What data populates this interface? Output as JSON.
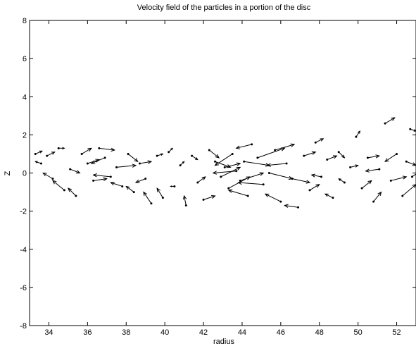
{
  "chart_data": {
    "type": "quiver",
    "title": "Velocity field of the particles in a portion of the disc",
    "xlabel": "radius",
    "ylabel": "Z",
    "xlim": [
      33,
      53
    ],
    "ylim": [
      -8,
      8
    ],
    "xticks": [
      34,
      36,
      38,
      40,
      42,
      44,
      46,
      48,
      50,
      52
    ],
    "yticks": [
      -8,
      -6,
      -4,
      -2,
      0,
      2,
      4,
      6,
      8
    ],
    "grid": false,
    "marker_color": "#000000",
    "series": [
      {
        "vectors": [
          {
            "x": 33.3,
            "y": 1.0,
            "u": 0.35,
            "v": 0.15
          },
          {
            "x": 33.6,
            "y": 0.5,
            "u": -0.3,
            "v": 0.1
          },
          {
            "x": 33.9,
            "y": 0.9,
            "u": 0.4,
            "v": 0.2
          },
          {
            "x": 34.2,
            "y": -0.3,
            "u": -0.5,
            "v": 0.3
          },
          {
            "x": 34.5,
            "y": 1.3,
            "u": 0.3,
            "v": 0.0
          },
          {
            "x": 34.8,
            "y": -0.9,
            "u": -0.6,
            "v": 0.5
          },
          {
            "x": 35.1,
            "y": 0.2,
            "u": 0.5,
            "v": -0.2
          },
          {
            "x": 35.4,
            "y": -1.2,
            "u": -0.4,
            "v": 0.4
          },
          {
            "x": 35.7,
            "y": 1.0,
            "u": 0.5,
            "v": 0.3
          },
          {
            "x": 36.0,
            "y": 0.5,
            "u": 0.6,
            "v": 0.2
          },
          {
            "x": 36.3,
            "y": -0.4,
            "u": 0.7,
            "v": 0.1
          },
          {
            "x": 36.6,
            "y": 1.3,
            "u": 0.8,
            "v": -0.1
          },
          {
            "x": 36.9,
            "y": 0.8,
            "u": -0.7,
            "v": -0.3
          },
          {
            "x": 37.2,
            "y": -0.2,
            "u": -0.9,
            "v": 0.1
          },
          {
            "x": 37.5,
            "y": 0.3,
            "u": 1.0,
            "v": 0.1
          },
          {
            "x": 37.8,
            "y": -0.7,
            "u": -0.6,
            "v": 0.2
          },
          {
            "x": 38.1,
            "y": 1.0,
            "u": 0.5,
            "v": -0.4
          },
          {
            "x": 38.4,
            "y": -1.0,
            "u": -0.4,
            "v": 0.3
          },
          {
            "x": 38.7,
            "y": 0.5,
            "u": 0.6,
            "v": 0.1
          },
          {
            "x": 39.0,
            "y": -0.3,
            "u": -0.5,
            "v": -0.2
          },
          {
            "x": 39.3,
            "y": -1.6,
            "u": -0.4,
            "v": 0.6
          },
          {
            "x": 39.6,
            "y": 0.9,
            "u": 0.3,
            "v": 0.1
          },
          {
            "x": 39.9,
            "y": -1.3,
            "u": -0.3,
            "v": 0.5
          },
          {
            "x": 40.2,
            "y": 1.1,
            "u": 0.2,
            "v": 0.2
          },
          {
            "x": 40.5,
            "y": -0.7,
            "u": -0.2,
            "v": 0.0
          },
          {
            "x": 40.8,
            "y": 0.4,
            "u": 0.2,
            "v": 0.2
          },
          {
            "x": 41.1,
            "y": -1.7,
            "u": -0.1,
            "v": 0.5
          },
          {
            "x": 41.4,
            "y": 0.9,
            "u": 0.3,
            "v": -0.2
          },
          {
            "x": 41.7,
            "y": -0.5,
            "u": 0.4,
            "v": 0.3
          },
          {
            "x": 42.0,
            "y": -1.4,
            "u": 0.6,
            "v": 0.2
          },
          {
            "x": 42.3,
            "y": 1.2,
            "u": 0.5,
            "v": -0.4
          },
          {
            "x": 42.6,
            "y": 0.6,
            "u": 0.8,
            "v": -0.3
          },
          {
            "x": 42.9,
            "y": -0.2,
            "u": 1.0,
            "v": 0.5
          },
          {
            "x": 43.1,
            "y": 0.3,
            "u": 0.8,
            "v": 0.2
          },
          {
            "x": 43.3,
            "y": -0.8,
            "u": 1.1,
            "v": 0.6
          },
          {
            "x": 43.5,
            "y": 1.0,
            "u": -0.9,
            "v": -0.6
          },
          {
            "x": 43.7,
            "y": 0.1,
            "u": -1.2,
            "v": -0.1
          },
          {
            "x": 43.9,
            "y": -0.4,
            "u": 1.2,
            "v": 0.4
          },
          {
            "x": 44.1,
            "y": 0.6,
            "u": 1.3,
            "v": -0.2
          },
          {
            "x": 44.3,
            "y": -1.2,
            "u": -1.0,
            "v": 0.3
          },
          {
            "x": 44.5,
            "y": 1.5,
            "u": -0.8,
            "v": -0.2
          },
          {
            "x": 44.8,
            "y": 0.8,
            "u": 1.4,
            "v": 0.5
          },
          {
            "x": 45.1,
            "y": -0.6,
            "u": -1.3,
            "v": 0.1
          },
          {
            "x": 45.4,
            "y": 0.0,
            "u": 1.2,
            "v": -0.3
          },
          {
            "x": 45.7,
            "y": 1.2,
            "u": 1.0,
            "v": 0.3
          },
          {
            "x": 46.0,
            "y": -1.5,
            "u": -0.8,
            "v": 0.4
          },
          {
            "x": 46.3,
            "y": 0.5,
            "u": -1.0,
            "v": -0.1
          },
          {
            "x": 46.6,
            "y": -0.3,
            "u": 0.9,
            "v": -0.2
          },
          {
            "x": 46.9,
            "y": -1.8,
            "u": -0.7,
            "v": 0.1
          },
          {
            "x": 47.2,
            "y": 0.9,
            "u": 0.6,
            "v": 0.2
          },
          {
            "x": 47.5,
            "y": -0.9,
            "u": 0.5,
            "v": 0.3
          },
          {
            "x": 47.8,
            "y": 1.6,
            "u": 0.4,
            "v": 0.2
          },
          {
            "x": 48.1,
            "y": -0.2,
            "u": -0.5,
            "v": 0.1
          },
          {
            "x": 48.4,
            "y": 0.7,
            "u": 0.5,
            "v": 0.2
          },
          {
            "x": 48.7,
            "y": -1.3,
            "u": -0.4,
            "v": 0.2
          },
          {
            "x": 49.0,
            "y": 1.1,
            "u": 0.3,
            "v": -0.3
          },
          {
            "x": 49.3,
            "y": -0.5,
            "u": -0.3,
            "v": 0.2
          },
          {
            "x": 49.6,
            "y": 0.3,
            "u": 0.4,
            "v": 0.1
          },
          {
            "x": 49.9,
            "y": 1.9,
            "u": 0.2,
            "v": 0.3
          },
          {
            "x": 50.2,
            "y": -0.8,
            "u": 0.5,
            "v": 0.4
          },
          {
            "x": 50.5,
            "y": 0.8,
            "u": 0.6,
            "v": 0.1
          },
          {
            "x": 50.8,
            "y": -1.5,
            "u": 0.4,
            "v": 0.5
          },
          {
            "x": 51.1,
            "y": 0.2,
            "u": -0.7,
            "v": -0.1
          },
          {
            "x": 51.4,
            "y": 2.6,
            "u": 0.5,
            "v": 0.3
          },
          {
            "x": 51.7,
            "y": -0.4,
            "u": 0.8,
            "v": 0.2
          },
          {
            "x": 52.0,
            "y": 1.0,
            "u": -0.6,
            "v": -0.4
          },
          {
            "x": 52.3,
            "y": -1.2,
            "u": 0.7,
            "v": 0.6
          },
          {
            "x": 52.5,
            "y": 0.6,
            "u": 0.5,
            "v": -0.2
          },
          {
            "x": 52.7,
            "y": 2.3,
            "u": 0.3,
            "v": -0.1
          },
          {
            "x": 52.8,
            "y": -0.2,
            "u": 0.4,
            "v": 0.3
          }
        ]
      }
    ]
  }
}
